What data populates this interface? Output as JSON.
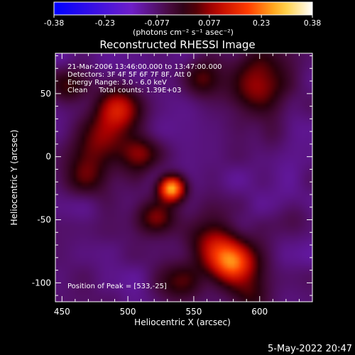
{
  "colorbar": {
    "ticks": [
      "-0.38",
      "-0.23",
      "-0.077",
      "0.077",
      "0.23",
      "0.38"
    ],
    "min": -0.38,
    "max": 0.38,
    "unit_label": "(photons cm⁻² s⁻¹ asec⁻²)"
  },
  "chart_data": {
    "type": "heatmap",
    "title": "Reconstructed RHESSI Image",
    "xlabel": "Heliocentric X (arcsec)",
    "ylabel": "Heliocentric Y (arcsec)",
    "xlim": [
      445,
      640
    ],
    "ylim": [
      -115,
      82
    ],
    "xticks": [
      450,
      500,
      550,
      600
    ],
    "yticks": [
      -100,
      -50,
      0,
      50
    ],
    "annotations": [
      "21-Mar-2006 13:46:00.000 to 13:47:00.000",
      "Detectors: 3F 4F 5F 6F 7F 8F, Att 0",
      "Energy Range: 3.0 - 6.0 keV",
      "Clean     Total counts: 1.39E+03"
    ],
    "peak_label": "Position of Peak = [533,-25]",
    "peak": [
      533,
      -25
    ],
    "sources": [
      {
        "x": 533,
        "y": -25,
        "amp": 0.38,
        "sigma": 7
      },
      {
        "x": 580,
        "y": -85,
        "amp": 0.3,
        "sigma": 12
      },
      {
        "x": 565,
        "y": -68,
        "amp": 0.16,
        "sigma": 14
      },
      {
        "x": 495,
        "y": 38,
        "amp": 0.2,
        "sigma": 12
      },
      {
        "x": 478,
        "y": 15,
        "amp": 0.14,
        "sigma": 14
      },
      {
        "x": 508,
        "y": 2,
        "amp": 0.16,
        "sigma": 10
      },
      {
        "x": 468,
        "y": -15,
        "amp": 0.12,
        "sigma": 12
      },
      {
        "x": 522,
        "y": -48,
        "amp": 0.16,
        "sigma": 10
      },
      {
        "x": 598,
        "y": 58,
        "amp": 0.18,
        "sigma": 16
      },
      {
        "x": 555,
        "y": 62,
        "amp": 0.12,
        "sigma": 10
      },
      {
        "x": 455,
        "y": 55,
        "amp": 0.1,
        "sigma": 10
      },
      {
        "x": 625,
        "y": -45,
        "amp": 0.05,
        "sigma": 10
      },
      {
        "x": 540,
        "y": -100,
        "amp": 0.1,
        "sigma": 12
      },
      {
        "x": 590,
        "y": -110,
        "amp": 0.1,
        "sigma": 10
      },
      {
        "x": 610,
        "y": 20,
        "amp": 0.06,
        "sigma": 10
      }
    ],
    "background": -0.09
  },
  "timestamp": "5-May-2022 20:47"
}
